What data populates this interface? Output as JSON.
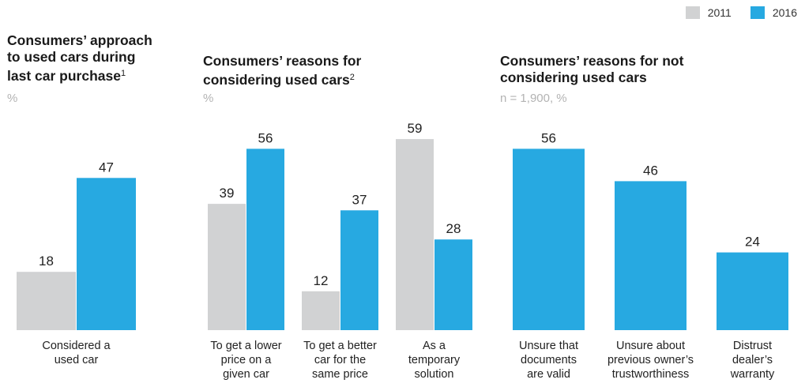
{
  "legend": {
    "items": [
      {
        "label": "2011",
        "color": "#d1d2d3"
      },
      {
        "label": "2016",
        "color": "#27a9e1"
      }
    ]
  },
  "chart_data": [
    {
      "type": "bar",
      "title": "Consumers’ approach to used cars during last car purchase",
      "title_lines": [
        "Consumers’ approach",
        "to used cars during",
        "last car purchase"
      ],
      "footnote_marker": "1",
      "unit": "%",
      "categories": [
        [
          "Considered a",
          "used car"
        ]
      ],
      "series": [
        {
          "name": "2011",
          "values": [
            18
          ]
        },
        {
          "name": "2016",
          "values": [
            47
          ]
        }
      ]
    },
    {
      "type": "bar",
      "title": "Consumers’ reasons for considering used cars",
      "title_lines": [
        "Consumers’ reasons for",
        "considering used cars"
      ],
      "footnote_marker": "2",
      "unit": "%",
      "categories": [
        [
          "To get a lower",
          "price on a",
          "given car"
        ],
        [
          "To get a better",
          "car for the",
          "same price"
        ],
        [
          "As a",
          "temporary",
          "solution"
        ]
      ],
      "series": [
        {
          "name": "2011",
          "values": [
            39,
            12,
            59
          ]
        },
        {
          "name": "2016",
          "values": [
            56,
            37,
            28
          ]
        }
      ]
    },
    {
      "type": "bar",
      "title": "Consumers’ reasons for not considering used cars",
      "title_lines": [
        "Consumers’ reasons for not",
        "considering used cars"
      ],
      "footnote_marker": "",
      "unit": "n = 1,900, %",
      "categories": [
        [
          "Unsure that",
          "documents",
          "are valid"
        ],
        [
          "Unsure about",
          "previous owner’s",
          "trustworthiness"
        ],
        [
          "Distrust",
          "dealer’s",
          "warranty"
        ]
      ],
      "series": [
        {
          "name": "2016",
          "values": [
            56,
            46,
            24
          ]
        }
      ]
    }
  ]
}
